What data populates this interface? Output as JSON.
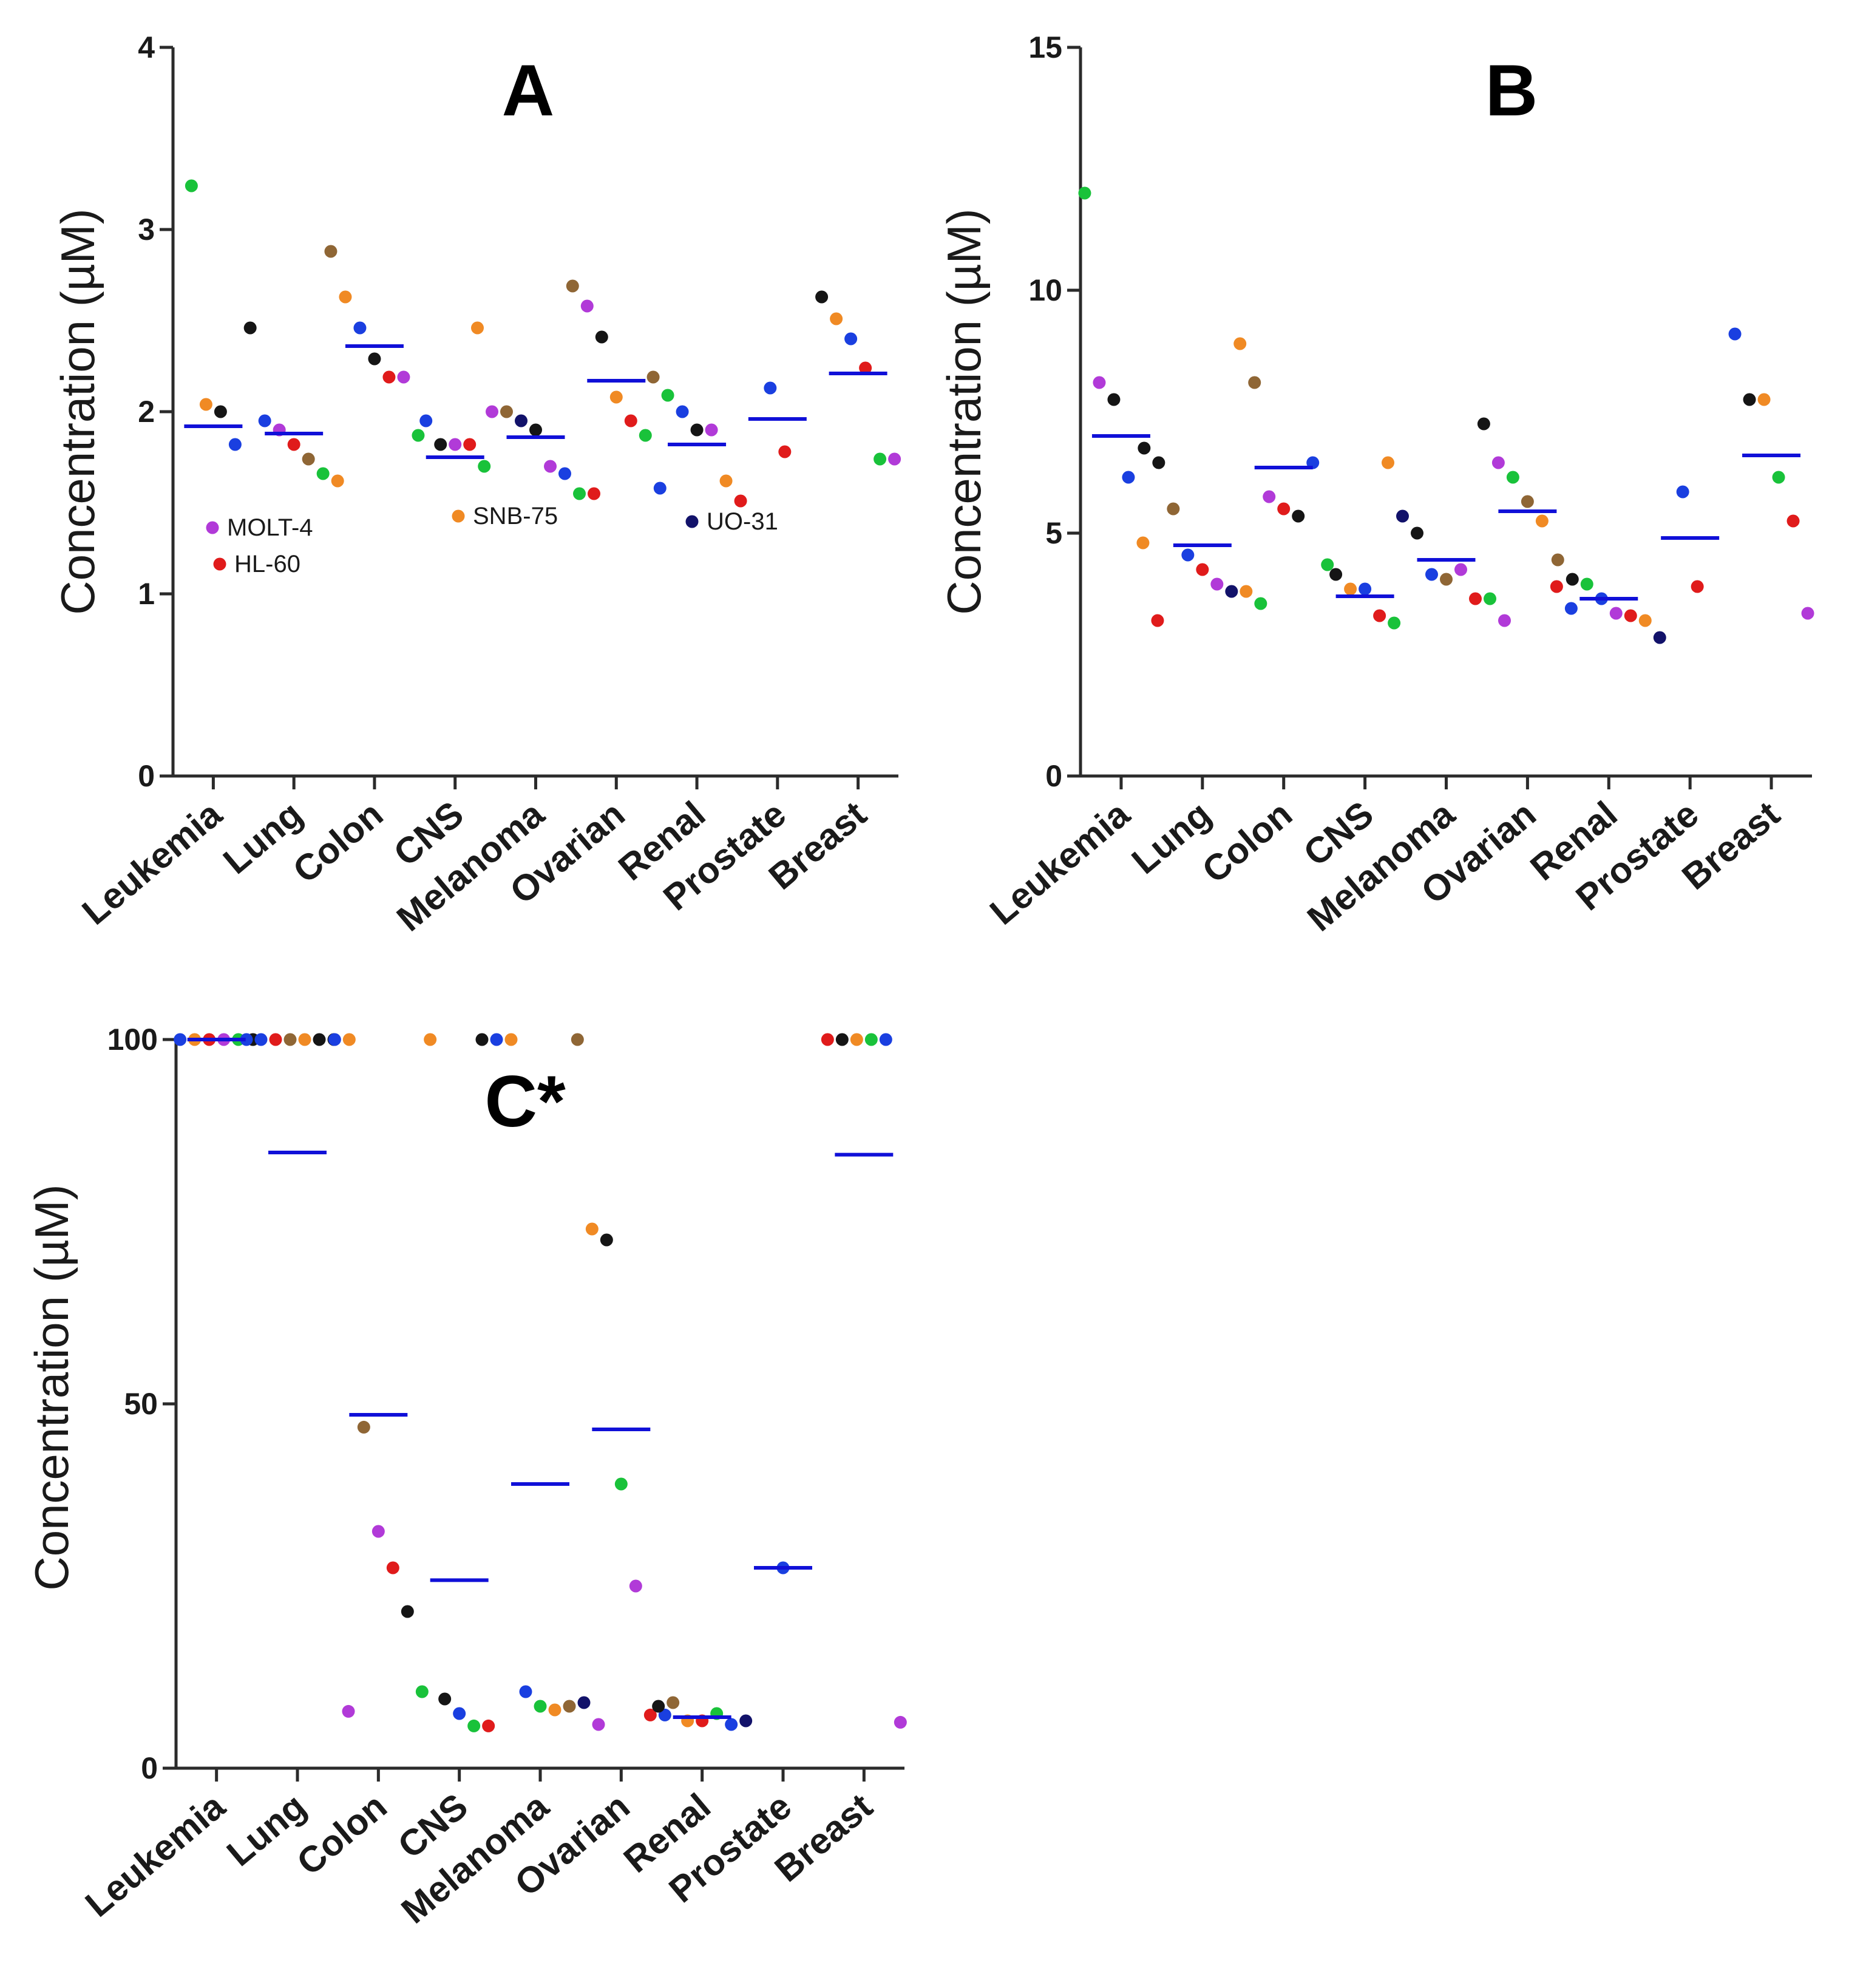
{
  "colors": {
    "mean_line": "#1010d8",
    "red": "#e01b1b",
    "green": "#19c23a",
    "blue": "#1a3fe0",
    "black": "#151515",
    "orange": "#f08a24",
    "purple": "#b13ad8",
    "brown": "#8f6635",
    "navy": "#12126a"
  },
  "chart_data": [
    {
      "panel": "A",
      "type": "scatter",
      "title": "A",
      "ylabel": "Concentration (µM)",
      "ylim": [
        0,
        4
      ],
      "yticks": [
        0,
        1,
        2,
        3,
        4
      ],
      "categories": [
        "Leukemia",
        "Lung",
        "Colon",
        "CNS",
        "Melanoma",
        "Ovarian",
        "Renal",
        "Prostate",
        "Breast"
      ],
      "means": [
        1.92,
        1.88,
        2.36,
        1.75,
        1.86,
        2.17,
        1.82,
        1.96,
        2.21
      ],
      "points": [
        [
          [
            "green",
            3.24
          ],
          [
            "orange",
            2.04
          ],
          [
            "black",
            2.0
          ],
          [
            "blue",
            1.82
          ]
        ],
        [
          [
            "black",
            2.46
          ],
          [
            "blue",
            1.95
          ],
          [
            "purple",
            1.9
          ],
          [
            "red",
            1.82
          ],
          [
            "brown",
            1.74
          ],
          [
            "green",
            1.66
          ],
          [
            "orange",
            1.62
          ]
        ],
        [
          [
            "brown",
            2.88
          ],
          [
            "orange",
            2.63
          ],
          [
            "blue",
            2.46
          ],
          [
            "black",
            2.29
          ],
          [
            "red",
            2.19
          ],
          [
            "purple",
            2.19
          ],
          [
            "green",
            1.87
          ]
        ],
        [
          [
            "blue",
            1.95
          ],
          [
            "black",
            1.82
          ],
          [
            "purple",
            1.82
          ],
          [
            "red",
            1.82
          ],
          [
            "green",
            1.7
          ]
        ],
        [
          [
            "orange",
            2.46
          ],
          [
            "purple",
            2.0
          ],
          [
            "brown",
            2.0
          ],
          [
            "navy",
            1.95
          ],
          [
            "black",
            1.9
          ],
          [
            "purple",
            1.7
          ],
          [
            "blue",
            1.66
          ],
          [
            "green",
            1.55
          ],
          [
            "red",
            1.55
          ]
        ],
        [
          [
            "brown",
            2.69
          ],
          [
            "purple",
            2.58
          ],
          [
            "black",
            2.41
          ],
          [
            "orange",
            2.08
          ],
          [
            "red",
            1.95
          ],
          [
            "green",
            1.87
          ],
          [
            "blue",
            1.58
          ]
        ],
        [
          [
            "brown",
            2.19
          ],
          [
            "green",
            2.09
          ],
          [
            "blue",
            2.0
          ],
          [
            "black",
            1.9
          ],
          [
            "purple",
            1.9
          ],
          [
            "orange",
            1.62
          ],
          [
            "red",
            1.51
          ]
        ],
        [
          [
            "blue",
            2.13
          ],
          [
            "red",
            1.78
          ]
        ],
        [
          [
            "black",
            2.63
          ],
          [
            "orange",
            2.51
          ],
          [
            "blue",
            2.4
          ],
          [
            "red",
            2.24
          ],
          [
            "green",
            1.74
          ],
          [
            "purple",
            1.74
          ]
        ]
      ],
      "legend": [
        {
          "color": "purple",
          "label": "MOLT-4"
        },
        {
          "color": "red",
          "label": "HL-60"
        },
        {
          "color": "orange",
          "label": "SNB-75"
        },
        {
          "color": "navy",
          "label": "UO-31"
        }
      ]
    },
    {
      "panel": "B",
      "type": "scatter",
      "title": "B",
      "ylabel": "Concentration (µM)",
      "ylim": [
        0,
        15
      ],
      "yticks": [
        0,
        5,
        10,
        15
      ],
      "categories": [
        "Leukemia",
        "Lung",
        "Colon",
        "CNS",
        "Melanoma",
        "Ovarian",
        "Renal",
        "Prostate",
        "Breast"
      ],
      "means": [
        7.0,
        4.75,
        6.35,
        3.7,
        4.45,
        5.45,
        3.65,
        4.9,
        6.6
      ],
      "points": [
        [
          [
            "green",
            12.0
          ],
          [
            "purple",
            8.1
          ],
          [
            "black",
            7.75
          ],
          [
            "blue",
            6.15
          ],
          [
            "orange",
            4.8
          ],
          [
            "red",
            3.2
          ]
        ],
        [
          [
            "black",
            6.75
          ],
          [
            "black",
            6.45
          ],
          [
            "brown",
            5.5
          ],
          [
            "blue",
            4.55
          ],
          [
            "red",
            4.25
          ],
          [
            "purple",
            3.95
          ],
          [
            "navy",
            3.8
          ],
          [
            "orange",
            3.8
          ],
          [
            "green",
            3.55
          ]
        ],
        [
          [
            "orange",
            8.9
          ],
          [
            "brown",
            8.1
          ],
          [
            "purple",
            5.75
          ],
          [
            "red",
            5.5
          ],
          [
            "black",
            5.35
          ],
          [
            "blue",
            6.45
          ],
          [
            "green",
            4.35
          ]
        ],
        [
          [
            "black",
            4.15
          ],
          [
            "orange",
            3.85
          ],
          [
            "blue",
            3.85
          ],
          [
            "red",
            3.3
          ],
          [
            "green",
            3.15
          ]
        ],
        [
          [
            "orange",
            6.45
          ],
          [
            "navy",
            5.35
          ],
          [
            "black",
            5.0
          ],
          [
            "blue",
            4.15
          ],
          [
            "brown",
            4.05
          ],
          [
            "purple",
            4.25
          ],
          [
            "red",
            3.65
          ],
          [
            "green",
            3.65
          ],
          [
            "purple",
            3.2
          ]
        ],
        [
          [
            "black",
            7.25
          ],
          [
            "purple",
            6.45
          ],
          [
            "green",
            6.15
          ],
          [
            "brown",
            5.65
          ],
          [
            "orange",
            5.25
          ],
          [
            "red",
            3.9
          ],
          [
            "blue",
            3.45
          ]
        ],
        [
          [
            "brown",
            4.45
          ],
          [
            "black",
            4.05
          ],
          [
            "green",
            3.95
          ],
          [
            "blue",
            3.65
          ],
          [
            "purple",
            3.35
          ],
          [
            "red",
            3.3
          ],
          [
            "orange",
            3.2
          ],
          [
            "navy",
            2.85
          ]
        ],
        [
          [
            "blue",
            5.85
          ],
          [
            "red",
            3.9
          ]
        ],
        [
          [
            "blue",
            9.1
          ],
          [
            "black",
            7.75
          ],
          [
            "orange",
            7.75
          ],
          [
            "green",
            6.15
          ],
          [
            "red",
            5.25
          ],
          [
            "purple",
            3.35
          ]
        ]
      ]
    },
    {
      "panel": "C",
      "type": "scatter",
      "title": "C*",
      "ylabel": "Concentration (µM)",
      "ylim": [
        0,
        100
      ],
      "yticks": [
        0,
        50,
        100
      ],
      "categories": [
        "Leukemia",
        "Lung",
        "Colon",
        "CNS",
        "Melanoma",
        "Ovarian",
        "Renal",
        "Prostate",
        "Breast"
      ],
      "means": [
        100,
        84.5,
        48.5,
        25.8,
        39.0,
        46.5,
        7.0,
        27.5,
        84.2
      ],
      "points": [
        [
          [
            "blue",
            100
          ],
          [
            "orange",
            100
          ],
          [
            "red",
            100
          ],
          [
            "purple",
            100
          ],
          [
            "green",
            100
          ],
          [
            "black",
            100
          ]
        ],
        [
          [
            "blue",
            100
          ],
          [
            "blue",
            100
          ],
          [
            "red",
            100
          ],
          [
            "brown",
            100
          ],
          [
            "orange",
            100
          ],
          [
            "black",
            100
          ],
          [
            "black",
            100
          ],
          [
            "purple",
            7.8
          ]
        ],
        [
          [
            "blue",
            100
          ],
          [
            "orange",
            100
          ],
          [
            "brown",
            46.8
          ],
          [
            "purple",
            32.5
          ],
          [
            "red",
            27.5
          ],
          [
            "black",
            21.5
          ],
          [
            "green",
            10.5
          ]
        ],
        [
          [
            "orange",
            100
          ],
          [
            "black",
            9.5
          ],
          [
            "blue",
            7.5
          ],
          [
            "green",
            5.8
          ],
          [
            "red",
            5.8
          ]
        ],
        [
          [
            "black",
            100
          ],
          [
            "blue",
            100
          ],
          [
            "orange",
            100
          ],
          [
            "blue",
            10.5
          ],
          [
            "green",
            8.5
          ],
          [
            "orange",
            8.0
          ],
          [
            "brown",
            8.5
          ],
          [
            "navy",
            9.0
          ],
          [
            "purple",
            6.0
          ]
        ],
        [
          [
            "brown",
            100
          ],
          [
            "orange",
            74.0
          ],
          [
            "black",
            72.5
          ],
          [
            "green",
            39.0
          ],
          [
            "purple",
            25.0
          ],
          [
            "red",
            7.3
          ],
          [
            "blue",
            7.3
          ]
        ],
        [
          [
            "black",
            8.5
          ],
          [
            "brown",
            9.0
          ],
          [
            "orange",
            6.5
          ],
          [
            "red",
            6.5
          ],
          [
            "green",
            7.5
          ],
          [
            "blue",
            6.0
          ],
          [
            "navy",
            6.5
          ]
        ],
        [
          [
            "blue",
            27.5
          ]
        ],
        [
          [
            "red",
            100
          ],
          [
            "black",
            100
          ],
          [
            "orange",
            100
          ],
          [
            "green",
            100
          ],
          [
            "blue",
            100
          ],
          [
            "purple",
            6.3
          ]
        ]
      ]
    }
  ]
}
